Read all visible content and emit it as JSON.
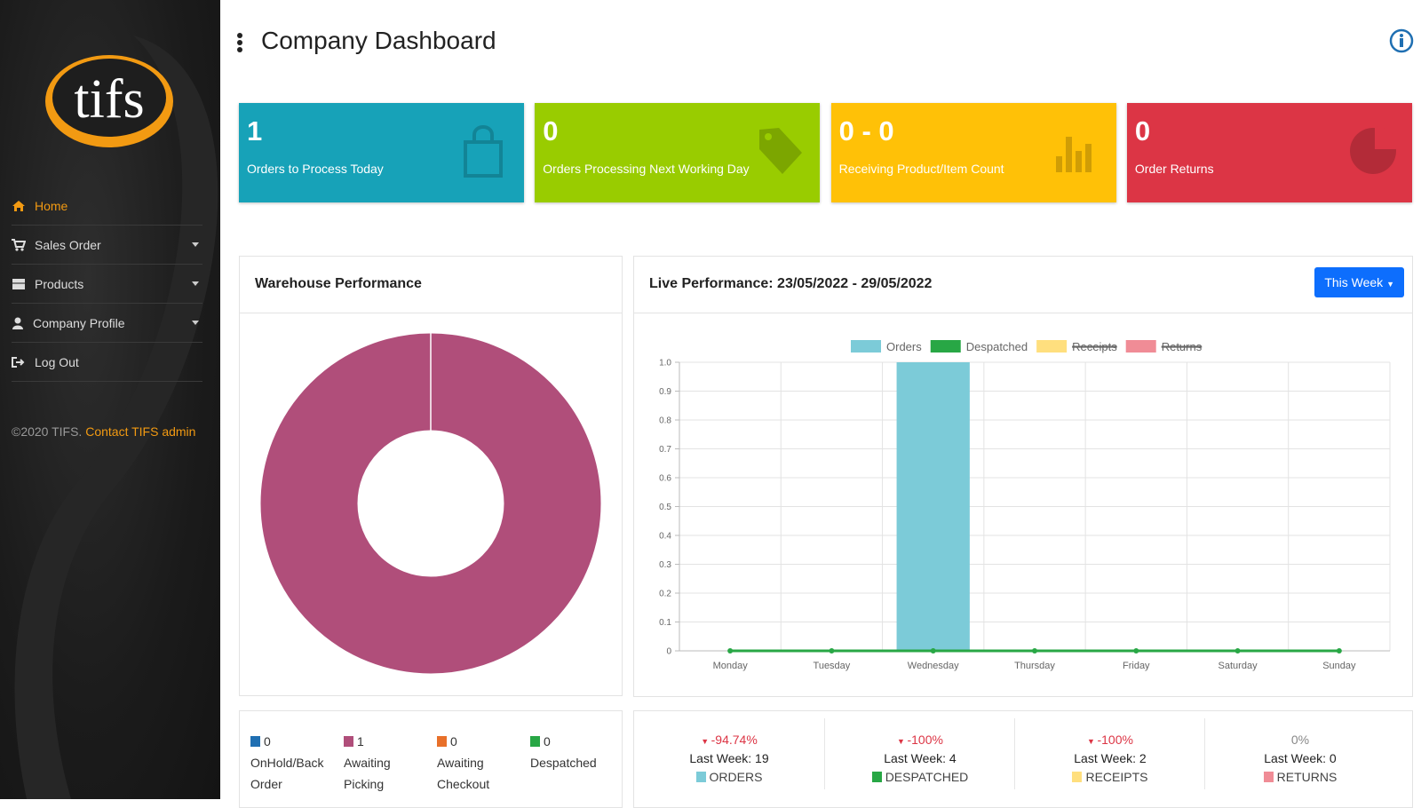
{
  "sidebar": {
    "logo": "tifs",
    "menu": [
      "Home",
      "Sales Order",
      "Products",
      "Company Profile",
      "Log Out"
    ],
    "copyright": "©2020 TIFS.",
    "contact": "Contact TIFS admin"
  },
  "header": {
    "title": "Company Dashboard"
  },
  "cards": [
    {
      "value": "1",
      "label": "Orders to Process Today",
      "color": "#17a2b8"
    },
    {
      "value": "0",
      "label": "Orders Processing Next Working Day",
      "color": "#99cc00"
    },
    {
      "value": "0 - 0",
      "label": "Receiving Product/Item Count",
      "color": "#ffc107"
    },
    {
      "value": "0",
      "label": "Order Returns",
      "color": "#dc3545"
    }
  ],
  "chart_data": [
    {
      "type": "pie",
      "title": "Warehouse Performance",
      "donut": true,
      "categories": [
        "OnHold/Back Order",
        "Awaiting Picking",
        "Awaiting Checkout",
        "Despatched"
      ],
      "values": [
        0,
        1,
        0,
        0
      ],
      "colors": [
        "#1f6fb2",
        "#b04e7a",
        "#e8702a",
        "#28a745"
      ]
    },
    {
      "type": "bar",
      "title": "Live Performance: 23/05/2022 - 29/05/2022",
      "button": "This Week",
      "categories": [
        "Monday",
        "Tuesday",
        "Wednesday",
        "Thursday",
        "Friday",
        "Saturday",
        "Sunday"
      ],
      "series": [
        {
          "name": "Orders",
          "color": "#7ccbd8",
          "type": "bar",
          "values": [
            0,
            0,
            1,
            0,
            0,
            0,
            0
          ]
        },
        {
          "name": "Despatched",
          "color": "#28a745",
          "type": "line",
          "values": [
            0,
            0,
            0,
            0,
            0,
            0,
            0
          ]
        },
        {
          "name": "Receipts",
          "color": "#ffdf7e",
          "hidden": true
        },
        {
          "name": "Returns",
          "color": "#f08c96",
          "hidden": true
        }
      ],
      "ylim": [
        0,
        1
      ],
      "yticks": [
        0,
        0.1,
        0.2,
        0.3,
        0.4,
        0.5,
        0.6,
        0.7,
        0.8,
        0.9,
        {
          "value": 1,
          "label": "1.0"
        }
      ],
      "grid": true
    }
  ],
  "stats": [
    {
      "change": "-94.74%",
      "direction": "down",
      "last_week": "Last Week: 19",
      "label": "ORDERS",
      "color": "#7ccbd8"
    },
    {
      "change": "-100%",
      "direction": "down",
      "last_week": "Last Week: 4",
      "label": "DESPATCHED",
      "color": "#28a745"
    },
    {
      "change": "-100%",
      "direction": "down",
      "last_week": "Last Week: 2",
      "label": "RECEIPTS",
      "color": "#ffdf7e"
    },
    {
      "change": "0%",
      "direction": "none",
      "last_week": "Last Week: 0",
      "label": "RETURNS",
      "color": "#f08c96"
    }
  ]
}
